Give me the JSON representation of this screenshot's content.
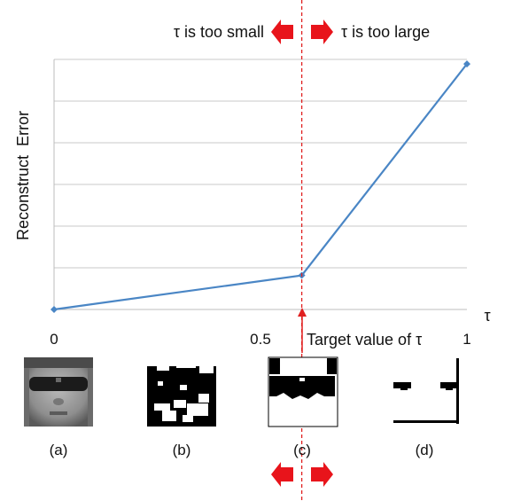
{
  "chart_data": {
    "type": "line",
    "title": "",
    "xlabel": "τ",
    "ylabel": "Reconstruct  Error",
    "xlim": [
      0,
      1
    ],
    "ylim": [
      0,
      5.5
    ],
    "x_ticks": [
      "0",
      "0.5",
      "1"
    ],
    "grid": true,
    "line_color": "#4a86c5",
    "marker_color": "#4a86c5",
    "series": [
      {
        "x": [
          0,
          0.6,
          1
        ],
        "y": [
          0,
          0.75,
          5.4
        ]
      }
    ]
  },
  "annotations": {
    "threshold_tau": 0.6,
    "threshold_color": "#e02020",
    "too_small": "τ is too small",
    "too_large": "τ is too large",
    "target": "Target value of τ"
  },
  "panels": [
    {
      "caption": "(a)",
      "kind": "face"
    },
    {
      "caption": "(b)",
      "kind": "mask-noisy"
    },
    {
      "caption": "(c)",
      "kind": "mask-target"
    },
    {
      "caption": "(d)",
      "kind": "mask-sparse"
    }
  ]
}
